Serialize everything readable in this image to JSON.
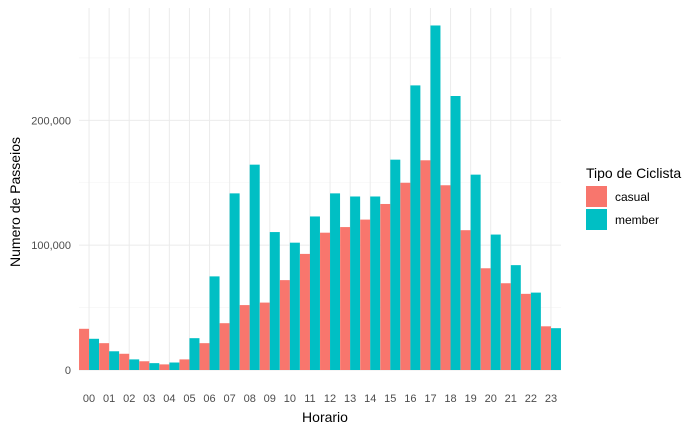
{
  "chart_data": {
    "type": "bar",
    "title": "",
    "xlabel": "Horario",
    "ylabel": "Numero de Passeios",
    "ylim": [
      0,
      290000
    ],
    "y_ticks": [
      0,
      100000,
      200000
    ],
    "y_tick_labels": [
      "0",
      "100,000",
      "200,000"
    ],
    "grid": true,
    "legend_position": "right",
    "legend_title": "Tipo de Ciclista",
    "categories": [
      "00",
      "01",
      "02",
      "03",
      "04",
      "05",
      "06",
      "07",
      "08",
      "09",
      "10",
      "11",
      "12",
      "13",
      "14",
      "15",
      "16",
      "17",
      "18",
      "19",
      "20",
      "21",
      "22",
      "23"
    ],
    "series": [
      {
        "name": "casual",
        "color": "#F8766D",
        "values": [
          33000,
          21500,
          13000,
          7000,
          4500,
          8500,
          21500,
          37500,
          52000,
          54000,
          72000,
          93000,
          110000,
          114500,
          120500,
          133000,
          150000,
          168000,
          148000,
          112000,
          81500,
          69500,
          61000,
          35000
        ]
      },
      {
        "name": "member",
        "color": "#00BFC4",
        "values": [
          25000,
          15000,
          8500,
          5500,
          6000,
          25500,
          75000,
          141500,
          164500,
          110500,
          102000,
          123000,
          141500,
          139000,
          139000,
          168500,
          228000,
          276000,
          219500,
          156500,
          108500,
          84000,
          62000,
          33500
        ]
      }
    ]
  }
}
